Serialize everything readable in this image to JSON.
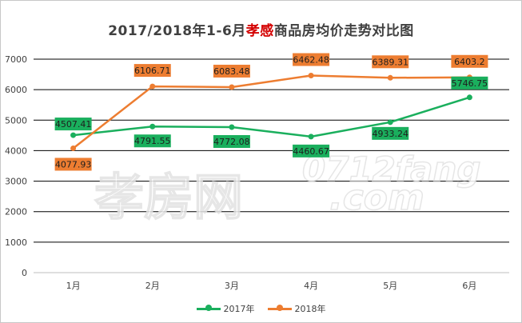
{
  "title": {
    "prefix": "2017/2018年1-6月",
    "highlight": "孝感",
    "suffix": "商品房均价走势对比图"
  },
  "watermark": {
    "main": "孝房网",
    "url": "0712fang",
    "suffix": ".com"
  },
  "chart_data": {
    "type": "line",
    "categories": [
      "1月",
      "2月",
      "3月",
      "4月",
      "5月",
      "6月"
    ],
    "ylim": [
      0,
      7000
    ],
    "yticks": [
      0,
      1000,
      2000,
      3000,
      4000,
      5000,
      6000,
      7000
    ],
    "grid": true,
    "legend_position": "bottom",
    "series": [
      {
        "name": "2017年",
        "color": "#1aaf5d",
        "values": [
          4507.41,
          4791.55,
          4772.08,
          4460.67,
          4933.24,
          5746.75
        ],
        "labels": [
          "4507.41",
          "4791.55",
          "4772.08",
          "4460.67",
          "4933.24",
          "5746.75"
        ]
      },
      {
        "name": "2018年",
        "color": "#ed7d31",
        "values": [
          4077.93,
          6106.71,
          6083.48,
          6462.48,
          6389.31,
          6403.2
        ],
        "labels": [
          "4077.93",
          "6106.71",
          "6083.48",
          "6462.48",
          "6389.31",
          "6403.2"
        ]
      }
    ]
  }
}
